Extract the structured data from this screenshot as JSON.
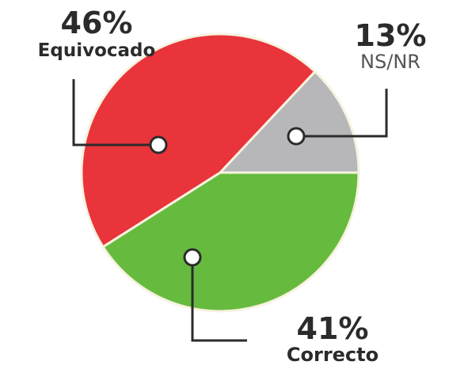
{
  "chart_data": {
    "type": "pie",
    "slices": [
      {
        "label": "Equivocado",
        "value": 46,
        "value_label": "46%",
        "color": "#e8343a"
      },
      {
        "label": "NS/NR",
        "value": 13,
        "value_label": "13%",
        "color": "#b7b7b9"
      },
      {
        "label": "Correcto",
        "value": 41,
        "value_label": "41%",
        "color": "#66bb3f"
      }
    ]
  }
}
